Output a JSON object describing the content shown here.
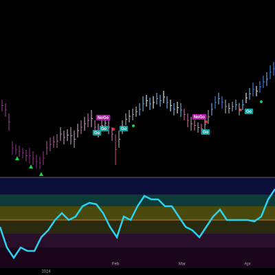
{
  "chart_data": {
    "type": "rangebar",
    "highs": [
      113,
      108,
      93,
      53,
      48,
      46,
      43,
      40,
      43,
      38,
      33,
      30,
      38,
      53,
      58,
      60,
      63,
      73,
      68,
      70,
      73,
      68,
      78,
      83,
      88,
      93,
      98,
      83,
      78,
      83,
      88,
      83,
      73,
      63,
      68,
      83,
      93,
      98,
      100,
      103,
      108,
      118,
      120,
      116,
      118,
      123,
      120,
      126,
      118,
      113,
      108,
      110,
      108,
      100,
      93,
      88,
      83,
      80,
      78,
      86,
      98,
      108,
      118,
      123,
      118,
      113,
      108,
      110,
      113,
      108,
      113,
      123,
      130,
      138,
      133,
      140,
      148,
      153,
      163,
      168
    ],
    "lows": [
      96,
      88,
      68,
      33,
      33,
      30,
      28,
      23,
      20,
      18,
      13,
      12,
      18,
      33,
      38,
      43,
      43,
      53,
      48,
      53,
      48,
      43,
      58,
      63,
      68,
      73,
      73,
      63,
      58,
      68,
      70,
      63,
      53,
      18,
      43,
      63,
      76,
      80,
      83,
      88,
      90,
      96,
      103,
      98,
      100,
      106,
      103,
      108,
      100,
      96,
      90,
      93,
      88,
      83,
      73,
      68,
      68,
      65,
      63,
      68,
      78,
      90,
      100,
      106,
      100,
      93,
      93,
      96,
      98,
      90,
      98,
      108,
      113,
      118,
      118,
      123,
      130,
      133,
      143,
      148
    ],
    "colors": [
      "#8a3a8a",
      "#8a3a8a",
      "#8a3a8a",
      "#7a2a7a",
      "#7a2a7a",
      "#8a3070",
      "#7a2a7a",
      "#8a3070",
      "#7a2a7a",
      "#8a3070",
      "#7a2a7a",
      "#7a2a7a",
      "#8a3070",
      "#9a4a8a",
      "#9a4a8a",
      "#a05a90",
      "#a05a90",
      "#b090b0",
      "#b090b0",
      "#c0a0c0",
      "#b090b0",
      "#b090b0",
      "#c0a0c0",
      "#b070a0",
      "#c0a0c0",
      "#b070a0",
      "#c0a0c0",
      "#b070a0",
      "#c0a0c0",
      "#b090b0",
      "#c0a0c0",
      "#b090b0",
      "#b070a0",
      "#b04070",
      "#a0a0a0",
      "#b0b0b0",
      "#a0a0a0",
      "#b0b0b0",
      "#a0a0a0",
      "#b0b0b0",
      "#6fa8dc",
      "#6fa8dc",
      "#e0e0e0",
      "#6fa8dc",
      "#e0e0e0",
      "#6fa8dc",
      "#6fa8dc",
      "#e0e0e0",
      "#6fa8dc",
      "#e0e0e0",
      "#6fa8dc",
      "#e0e0e0",
      "#6fa8dc",
      "#c06090",
      "#c06090",
      "#b090b0",
      "#c06090",
      "#b090b0",
      "#c06090",
      "#b090b0",
      "#a0a0a0",
      "#6fa8dc",
      "#3a7ad8",
      "#6fa8dc",
      "#3a7ad8",
      "#a0a0a0",
      "#b0b0b0",
      "#a0a0a0",
      "#6fa8dc",
      "#a0a0a0",
      "#6fa8dc",
      "#e0e0e0",
      "#6fa8dc",
      "#3a7ad8",
      "#e0e0e0",
      "#3a7ad8",
      "#3a7ad8",
      "#6fa8dc",
      "#3a7ad8",
      "#3a7ad8"
    ],
    "ylim": [
      0,
      258
    ],
    "annotations": [
      "NoGo",
      "Go",
      "Go",
      "Go",
      "NoGo",
      "Go",
      "Go"
    ],
    "oscillator": {
      "color": "#2ad4f0",
      "values": [
        60,
        30,
        15,
        30,
        25,
        25,
        45,
        55,
        70,
        80,
        70,
        75,
        90,
        95,
        93,
        80,
        60,
        45,
        75,
        70,
        90,
        105,
        100,
        100,
        90,
        90,
        75,
        60,
        55,
        45,
        60,
        75,
        85,
        70,
        70,
        70,
        70,
        68,
        75,
        100,
        115
      ],
      "ylim": [
        0,
        132
      ]
    },
    "x_tick_labels": [
      "2024",
      "Feb",
      "Mar",
      "Apr"
    ]
  }
}
